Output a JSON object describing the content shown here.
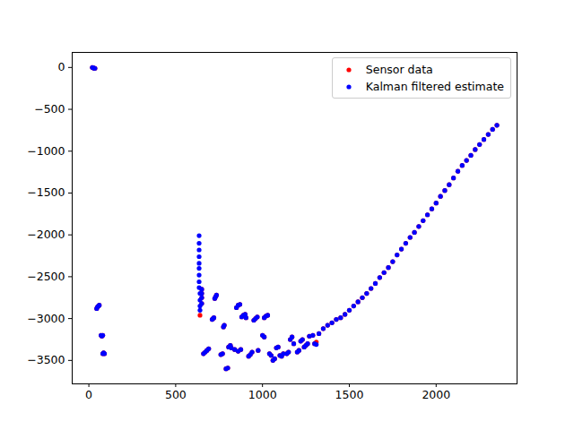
{
  "chart_data": {
    "type": "scatter",
    "xlim": [
      -96,
      2466
    ],
    "xticks": [
      0,
      500,
      1000,
      1500,
      2000
    ],
    "ylim": [
      -3780,
      180
    ],
    "yticks": [
      0,
      -500,
      -1000,
      -1500,
      -2000,
      -2500,
      -3000,
      -3500
    ],
    "grid": false,
    "legend": "upper right",
    "series": [
      {
        "name": "Sensor data",
        "color": "#ff0000",
        "marker": "o",
        "x": [
          20,
          25,
          30,
          35,
          45,
          50,
          55,
          60,
          70,
          75,
          80,
          80,
          85,
          90,
          640,
          650,
          650,
          650,
          650,
          660,
          670,
          680,
          690,
          710,
          715,
          720,
          725,
          730,
          735,
          760,
          770,
          775,
          780,
          790,
          800,
          805,
          815,
          820,
          840,
          850,
          860,
          870,
          860,
          875,
          880,
          890,
          900,
          905,
          920,
          930,
          940,
          950,
          960,
          970,
          975,
          1000,
          1010,
          1010,
          1020,
          1030,
          1040,
          1050,
          1060,
          1070,
          1080,
          1090,
          1100,
          1110,
          1120,
          1140,
          1150,
          1160,
          1170,
          1180,
          1200,
          1210,
          1220,
          1230,
          1240,
          1250,
          1260,
          1270,
          1290,
          1300,
          1310,
          1325,
          1350,
          1375,
          1400,
          1425,
          1450,
          1475,
          1500,
          1525,
          1550,
          1575,
          1600,
          1625,
          1650,
          1675,
          1700,
          1725,
          1750,
          1775,
          1800,
          1825,
          1850,
          1875,
          1900,
          1925,
          1950,
          1975,
          2000,
          2025,
          2050,
          2075,
          2100,
          2125,
          2150,
          2175,
          2200,
          2225,
          2250,
          2275,
          2300,
          2325,
          2350
        ],
        "values": [
          0,
          -5,
          -8,
          -10,
          -2880,
          -2860,
          -2850,
          -2840,
          -3200,
          -3210,
          -3200,
          -3420,
          -3410,
          -3420,
          -2960,
          -2650,
          -2700,
          -2750,
          -2820,
          -3420,
          -3400,
          -3380,
          -3360,
          -3010,
          -3000,
          -2990,
          -2760,
          -2740,
          -2720,
          -3430,
          -3420,
          -3100,
          -3080,
          -3600,
          -3590,
          -3340,
          -3320,
          -3350,
          -3370,
          -2870,
          -2840,
          -2830,
          -3390,
          -3370,
          -2980,
          -2960,
          -2950,
          -2990,
          -3450,
          -3430,
          -3400,
          -3020,
          -3000,
          -2980,
          -3380,
          -3200,
          -3220,
          -2990,
          -2970,
          -2960,
          -3420,
          -3440,
          -3500,
          -3480,
          -3350,
          -3340,
          -3440,
          -3450,
          -3420,
          -3420,
          -3400,
          -3250,
          -3220,
          -3300,
          -3400,
          -3380,
          -3270,
          -3250,
          -3340,
          -3320,
          -3300,
          -3210,
          -3200,
          -3300,
          -3280,
          -3180,
          -3120,
          -3080,
          -3050,
          -3010,
          -2990,
          -2950,
          -2900,
          -2850,
          -2800,
          -2750,
          -2700,
          -2640,
          -2580,
          -2510,
          -2450,
          -2390,
          -2320,
          -2240,
          -2170,
          -2100,
          -2030,
          -1970,
          -1900,
          -1830,
          -1760,
          -1690,
          -1620,
          -1540,
          -1470,
          -1400,
          -1320,
          -1240,
          -1170,
          -1110,
          -1050,
          -980,
          -920,
          -860,
          -800,
          -740,
          -690
        ]
      },
      {
        "name": "Kalman filtered estimate",
        "color": "#0000ff",
        "marker": "o",
        "x": [
          20,
          25,
          30,
          35,
          45,
          50,
          55,
          60,
          70,
          75,
          80,
          80,
          85,
          90,
          635,
          635,
          635,
          635,
          635,
          635,
          635,
          635,
          635,
          640,
          640,
          640,
          640,
          650,
          650,
          650,
          650,
          660,
          670,
          680,
          690,
          710,
          715,
          720,
          725,
          730,
          735,
          760,
          770,
          775,
          780,
          790,
          800,
          805,
          815,
          820,
          840,
          850,
          860,
          870,
          860,
          875,
          880,
          890,
          900,
          905,
          920,
          930,
          940,
          950,
          960,
          970,
          975,
          1000,
          1010,
          1010,
          1020,
          1030,
          1040,
          1050,
          1060,
          1070,
          1080,
          1090,
          1100,
          1110,
          1120,
          1140,
          1150,
          1160,
          1170,
          1180,
          1200,
          1210,
          1220,
          1230,
          1240,
          1250,
          1260,
          1270,
          1290,
          1300,
          1310,
          1325,
          1350,
          1375,
          1400,
          1425,
          1450,
          1475,
          1500,
          1525,
          1550,
          1575,
          1600,
          1625,
          1650,
          1675,
          1700,
          1725,
          1750,
          1775,
          1800,
          1825,
          1850,
          1875,
          1900,
          1925,
          1950,
          1975,
          2000,
          2025,
          2050,
          2075,
          2100,
          2125,
          2150,
          2175,
          2200,
          2225,
          2250,
          2275,
          2300,
          2325,
          2350
        ],
        "values": [
          0,
          -5,
          -8,
          -10,
          -2880,
          -2860,
          -2850,
          -2840,
          -3200,
          -3210,
          -3200,
          -3420,
          -3410,
          -3420,
          -2010,
          -2100,
          -2180,
          -2260,
          -2340,
          -2400,
          -2480,
          -2560,
          -2630,
          -2700,
          -2780,
          -2850,
          -2900,
          -2650,
          -2700,
          -2750,
          -2820,
          -3420,
          -3400,
          -3380,
          -3360,
          -3010,
          -3000,
          -2990,
          -2760,
          -2740,
          -2720,
          -3430,
          -3420,
          -3100,
          -3080,
          -3600,
          -3590,
          -3340,
          -3320,
          -3350,
          -3370,
          -2870,
          -2840,
          -2830,
          -3390,
          -3370,
          -2980,
          -2960,
          -2950,
          -2990,
          -3450,
          -3430,
          -3400,
          -3020,
          -3000,
          -2980,
          -3380,
          -3200,
          -3220,
          -2990,
          -2970,
          -2960,
          -3420,
          -3440,
          -3500,
          -3480,
          -3350,
          -3340,
          -3440,
          -3450,
          -3420,
          -3420,
          -3400,
          -3250,
          -3220,
          -3300,
          -3400,
          -3380,
          -3270,
          -3250,
          -3340,
          -3320,
          -3300,
          -3210,
          -3200,
          -3300,
          -3310,
          -3180,
          -3120,
          -3080,
          -3050,
          -3010,
          -2990,
          -2950,
          -2900,
          -2850,
          -2800,
          -2750,
          -2700,
          -2640,
          -2580,
          -2510,
          -2450,
          -2390,
          -2320,
          -2240,
          -2170,
          -2100,
          -2030,
          -1970,
          -1900,
          -1830,
          -1760,
          -1690,
          -1620,
          -1540,
          -1470,
          -1400,
          -1320,
          -1240,
          -1170,
          -1110,
          -1050,
          -980,
          -920,
          -860,
          -800,
          -740,
          -690
        ]
      }
    ]
  }
}
